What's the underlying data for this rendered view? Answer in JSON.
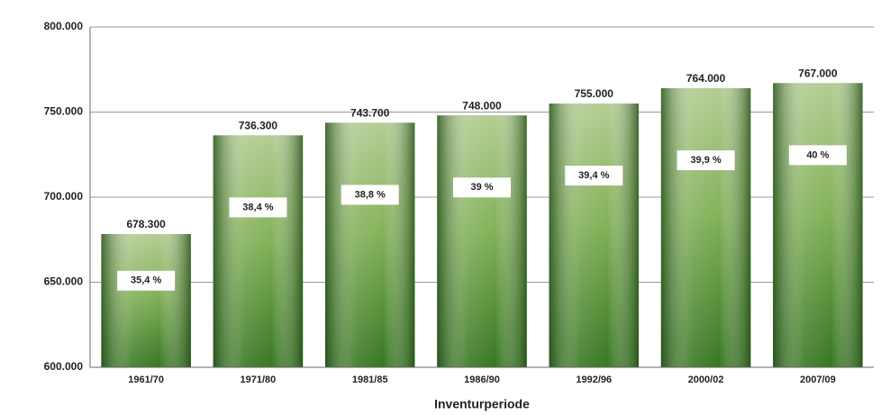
{
  "chart_data": {
    "type": "bar",
    "categories": [
      "1961/70",
      "1971/80",
      "1981/85",
      "1986/90",
      "1992/96",
      "2000/02",
      "2007/09"
    ],
    "values": [
      678300,
      736300,
      743700,
      748000,
      755000,
      764000,
      767000
    ],
    "value_labels": [
      "678.300",
      "736.300",
      "743.700",
      "748.000",
      "755.000",
      "764.000",
      "767.000"
    ],
    "share_labels": [
      "35,4 %",
      "38,4 %",
      "38,8 %",
      "39 %",
      "39,4 %",
      "39,9 %",
      "40 %"
    ],
    "color": "#5f9a3a",
    "x_label": "Inventurperiode",
    "ylim": [
      600000,
      800000
    ],
    "yticks": [
      {
        "value": 600000,
        "label": "600.000"
      },
      {
        "value": 650000,
        "label": "650.000"
      },
      {
        "value": 700000,
        "label": "700.000"
      },
      {
        "value": 750000,
        "label": "750.000"
      },
      {
        "value": 800000,
        "label": "800.000"
      }
    ],
    "grid": true
  }
}
